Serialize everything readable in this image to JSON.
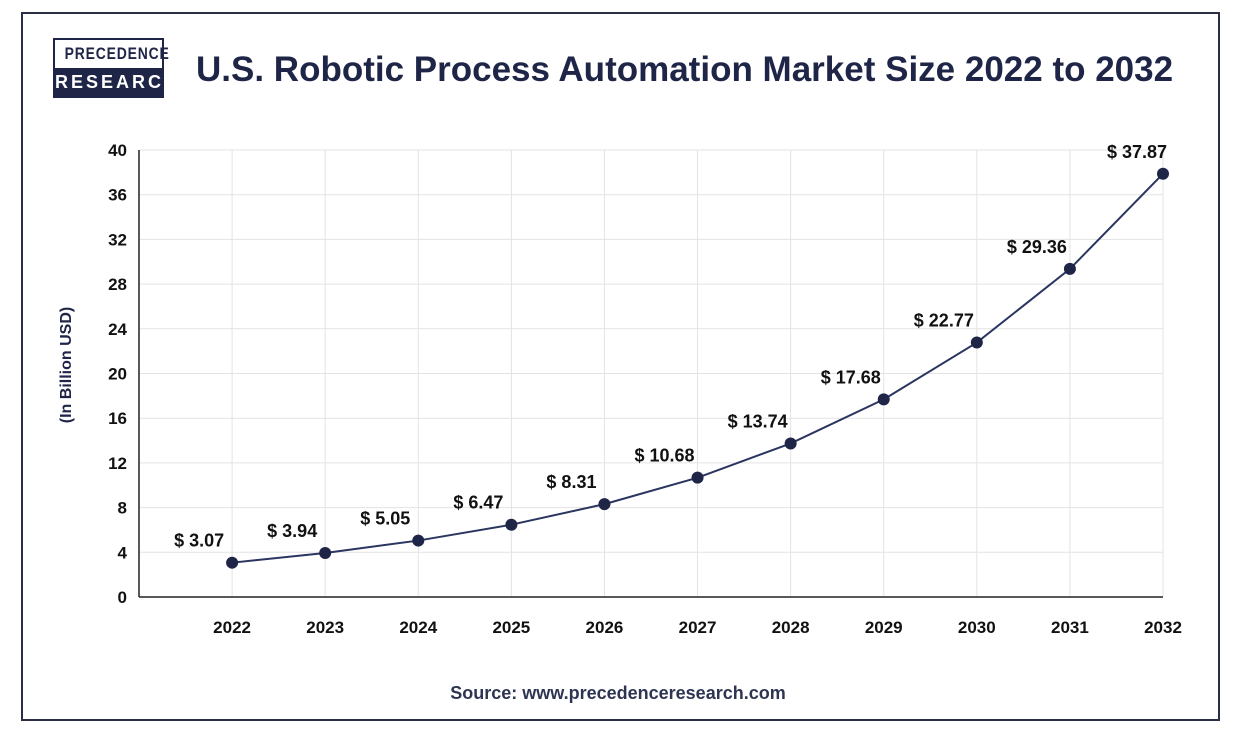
{
  "brand": {
    "logo_line1": "PRECEDENCE",
    "logo_line2": "RESEARCH"
  },
  "colors": {
    "line": "#2a3560",
    "marker": "#1e2547",
    "grid": "#e3e3e3",
    "axis": "#222222"
  },
  "chart_data": {
    "type": "line",
    "title": "U.S. Robotic Process Automation Market Size 2022 to 2032",
    "ylabel": "(In Billion USD)",
    "xlabel": "",
    "categories": [
      "2022",
      "2023",
      "2024",
      "2025",
      "2026",
      "2027",
      "2028",
      "2029",
      "2030",
      "2031",
      "2032"
    ],
    "series": [
      {
        "values": [
          3.07,
          3.94,
          5.05,
          6.47,
          8.31,
          10.68,
          13.74,
          17.68,
          22.77,
          29.36,
          37.87
        ],
        "labels": [
          "$ 3.07",
          "$ 3.94",
          "$ 5.05",
          "$ 6.47",
          "$ 8.31",
          "$ 10.68",
          "$ 13.74",
          "$ 17.68",
          "$ 22.77",
          "$ 29.36",
          "$ 37.87"
        ]
      }
    ],
    "ylim": [
      0,
      40
    ],
    "yticks": [
      "0",
      "4",
      "8",
      "12",
      "16",
      "20",
      "24",
      "28",
      "32",
      "36",
      "40"
    ],
    "grid": true,
    "legend": "none"
  },
  "source": "Source: www.precedenceresearch.com"
}
